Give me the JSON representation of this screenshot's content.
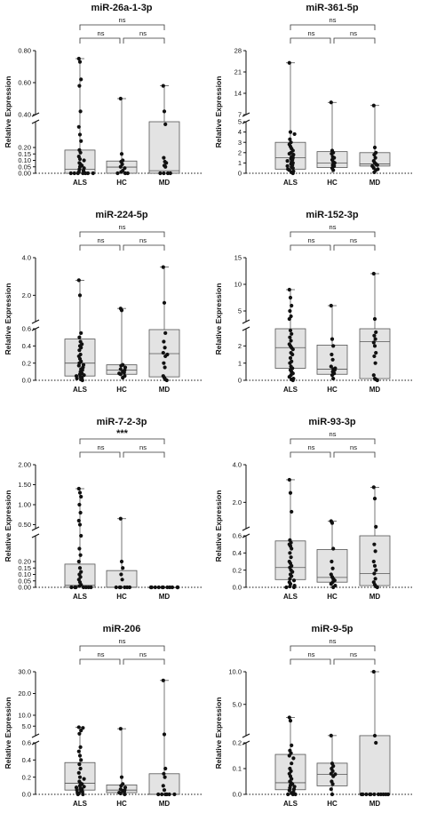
{
  "chart_data": [
    {
      "type": "box",
      "title": "miR-26a-1-3p",
      "ylabel": "Relative Expression",
      "categories": [
        "ALS",
        "HC",
        "MD"
      ],
      "y_break": {
        "lower_range": [
          0,
          0.4
        ],
        "upper_range": [
          0.4,
          0.8
        ]
      },
      "yticks_lower": [
        "0.00",
        "0.05",
        "0.10",
        "0.15",
        "0.20"
      ],
      "yticks_upper": [
        "0.40",
        "0.60",
        "0.80"
      ],
      "boxes": [
        {
          "category": "ALS",
          "min": 0.0,
          "q1": 0.0,
          "median": 0.03,
          "q3": 0.18,
          "max": 0.75
        },
        {
          "category": "HC",
          "min": 0.0,
          "q1": 0.0,
          "median": 0.048,
          "q3": 0.095,
          "max": 0.5
        },
        {
          "category": "MD",
          "min": 0.0,
          "q1": 0.0,
          "median": 0.02,
          "q3": 0.4,
          "max": 0.58
        }
      ],
      "points": {
        "ALS": [
          0.75,
          0.73,
          0.62,
          0.58,
          0.42,
          0.36,
          0.3,
          0.25,
          0.18,
          0.16,
          0.13,
          0.11,
          0.1,
          0.08,
          0.07,
          0.06,
          0.05,
          0.04,
          0.03,
          0.02,
          0.01,
          0.0,
          0.0,
          0.0,
          0.0,
          0.0,
          0.0,
          0.0
        ],
        "HC": [
          0.5,
          0.15,
          0.1,
          0.09,
          0.07,
          0.05,
          0.04,
          0.02,
          0.01,
          0.0,
          0.0,
          0.0
        ],
        "MD": [
          0.58,
          0.42,
          0.38,
          0.12,
          0.09,
          0.08,
          0.06,
          0.05,
          0.0,
          0.0,
          0.0,
          0.0
        ]
      },
      "significance": {
        "top": "ns",
        "left": "ns",
        "right": "ns"
      }
    },
    {
      "type": "box",
      "title": "miR-361-5p",
      "ylabel": "Relative Expression",
      "categories": [
        "ALS",
        "HC",
        "MD"
      ],
      "y_break": {
        "lower_range": [
          0,
          5
        ],
        "upper_range": [
          7,
          28
        ]
      },
      "yticks_lower": [
        "0",
        "1",
        "2",
        "3",
        "4",
        "5"
      ],
      "yticks_upper": [
        "7",
        "14",
        "21",
        "28"
      ],
      "boxes": [
        {
          "category": "ALS",
          "min": 0.0,
          "q1": 0.4,
          "median": 1.5,
          "q3": 3.0,
          "max": 24.0
        },
        {
          "category": "HC",
          "min": 0.0,
          "q1": 0.55,
          "median": 1.0,
          "q3": 2.1,
          "max": 11.0
        },
        {
          "category": "MD",
          "min": 0.0,
          "q1": 0.7,
          "median": 0.9,
          "q3": 2.0,
          "max": 10.0
        }
      ],
      "points": {
        "ALS": [
          24.0,
          4.0,
          3.8,
          3.3,
          3.0,
          2.8,
          2.6,
          2.4,
          2.2,
          2.0,
          1.9,
          1.8,
          1.6,
          1.5,
          1.4,
          1.3,
          1.2,
          1.1,
          1.0,
          0.9,
          0.8,
          0.7,
          0.6,
          0.5,
          0.4,
          0.3,
          0.2,
          0.1,
          0.0
        ],
        "HC": [
          11.0,
          2.2,
          2.0,
          1.9,
          1.6,
          1.5,
          1.3,
          1.1,
          1.0,
          0.8,
          0.7,
          0.5,
          0.3
        ],
        "MD": [
          10.0,
          2.5,
          2.0,
          1.8,
          1.5,
          1.2,
          1.0,
          0.9,
          0.8,
          0.7,
          0.5,
          0.4,
          0.3,
          0.1
        ]
      },
      "significance": {
        "top": "ns",
        "left": "ns",
        "right": "ns"
      }
    },
    {
      "type": "box",
      "title": "miR-224-5p",
      "ylabel": "Relative Expression",
      "categories": [
        "ALS",
        "HC",
        "MD"
      ],
      "y_break": {
        "lower_range": [
          0,
          0.6
        ],
        "upper_range": [
          0.6,
          4.0
        ]
      },
      "yticks_lower": [
        "0.0",
        "0.2",
        "0.4",
        "0.6"
      ],
      "yticks_upper": [
        "2.0",
        "4.0"
      ],
      "boxes": [
        {
          "category": "ALS",
          "min": 0.0,
          "q1": 0.05,
          "median": 0.2,
          "q3": 0.48,
          "max": 2.8
        },
        {
          "category": "HC",
          "min": 0.03,
          "q1": 0.07,
          "median": 0.12,
          "q3": 0.18,
          "max": 1.3
        },
        {
          "category": "MD",
          "min": 0.0,
          "q1": 0.04,
          "median": 0.31,
          "q3": 0.59,
          "max": 3.5
        }
      ],
      "points": {
        "ALS": [
          2.8,
          2.0,
          0.55,
          0.5,
          0.45,
          0.42,
          0.4,
          0.38,
          0.35,
          0.3,
          0.28,
          0.25,
          0.22,
          0.2,
          0.18,
          0.17,
          0.15,
          0.13,
          0.12,
          0.1,
          0.08,
          0.07,
          0.06,
          0.05,
          0.04,
          0.03,
          0.02,
          0.01,
          0.0
        ],
        "HC": [
          1.3,
          1.2,
          0.18,
          0.17,
          0.15,
          0.13,
          0.12,
          0.1,
          0.09,
          0.08,
          0.07,
          0.05,
          0.03
        ],
        "MD": [
          3.5,
          1.6,
          0.55,
          0.45,
          0.38,
          0.32,
          0.3,
          0.28,
          0.2,
          0.15,
          0.05,
          0.03,
          0.01,
          0.0
        ]
      },
      "significance": {
        "top": "ns",
        "left": "ns",
        "right": "ns"
      }
    },
    {
      "type": "box",
      "title": "miR-152-3p",
      "ylabel": "Relative Expression",
      "categories": [
        "ALS",
        "HC",
        "MD"
      ],
      "y_break": {
        "lower_range": [
          0,
          3
        ],
        "upper_range": [
          3,
          15
        ]
      },
      "yticks_lower": [
        "0",
        "1",
        "2"
      ],
      "yticks_upper": [
        "5",
        "10",
        "15"
      ],
      "boxes": [
        {
          "category": "ALS",
          "min": 0.0,
          "q1": 0.7,
          "median": 1.9,
          "q3": 3.0,
          "max": 9.0
        },
        {
          "category": "HC",
          "min": 0.0,
          "q1": 0.35,
          "median": 0.65,
          "q3": 2.05,
          "max": 6.0
        },
        {
          "category": "MD",
          "min": 0.0,
          "q1": 0.1,
          "median": 2.25,
          "q3": 3.0,
          "max": 12.0
        }
      ],
      "points": {
        "ALS": [
          9.0,
          7.5,
          6.0,
          5.0,
          4.0,
          3.5,
          2.9,
          2.7,
          2.5,
          2.3,
          2.1,
          2.0,
          1.9,
          1.8,
          1.6,
          1.5,
          1.3,
          1.1,
          1.0,
          0.8,
          0.7,
          0.6,
          0.5,
          0.4,
          0.3,
          0.2,
          0.1,
          0.05,
          0.0
        ],
        "HC": [
          6.0,
          2.4,
          2.0,
          1.5,
          1.2,
          0.8,
          0.7,
          0.65,
          0.6,
          0.5,
          0.4,
          0.3,
          0.1
        ],
        "MD": [
          12.0,
          3.5,
          2.8,
          2.6,
          2.4,
          2.2,
          2.0,
          1.6,
          1.4,
          1.0,
          0.3,
          0.1,
          0.05,
          0.0
        ]
      },
      "significance": {
        "top": "ns",
        "left": "ns",
        "right": "ns"
      }
    },
    {
      "type": "box",
      "title": "miR-7-2-3p",
      "ylabel": "Relative Expression",
      "categories": [
        "ALS",
        "HC",
        "MD"
      ],
      "y_break": {
        "lower_range": [
          0,
          0.4
        ],
        "upper_range": [
          0.4,
          2.0
        ]
      },
      "yticks_lower": [
        "0.00",
        "0.05",
        "0.10",
        "0.15",
        "0.20"
      ],
      "yticks_upper": [
        "0.50",
        "1.00",
        "1.50",
        "2.00"
      ],
      "boxes": [
        {
          "category": "ALS",
          "min": 0.0,
          "q1": 0.0,
          "median": 0.015,
          "q3": 0.18,
          "max": 1.4
        },
        {
          "category": "HC",
          "min": 0.0,
          "q1": 0.0,
          "median": 0.0,
          "q3": 0.13,
          "max": 0.65
        },
        {
          "category": "MD",
          "min": 0.0,
          "q1": 0.0,
          "median": 0.0,
          "q3": 0.0,
          "max": 0.0
        }
      ],
      "points": {
        "ALS": [
          1.4,
          1.3,
          1.2,
          1.0,
          0.8,
          0.6,
          0.5,
          0.4,
          0.3,
          0.25,
          0.2,
          0.15,
          0.12,
          0.1,
          0.08,
          0.06,
          0.04,
          0.02,
          0.01,
          0.0,
          0.0,
          0.0,
          0.0,
          0.0,
          0.0,
          0.0
        ],
        "HC": [
          0.65,
          0.2,
          0.15,
          0.1,
          0.06,
          0.0,
          0.0,
          0.0,
          0.0,
          0.0,
          0.0
        ],
        "MD": [
          0.0,
          0.0,
          0.0,
          0.0,
          0.0,
          0.0,
          0.0,
          0.0,
          0.0,
          0.0,
          0.0,
          0.0,
          0.0,
          0.0
        ]
      },
      "significance": {
        "top": "***",
        "left": "ns",
        "right": "ns"
      }
    },
    {
      "type": "box",
      "title": "miR-93-3p",
      "ylabel": "Relative Expression",
      "categories": [
        "ALS",
        "HC",
        "MD"
      ],
      "y_break": {
        "lower_range": [
          0,
          0.6
        ],
        "upper_range": [
          0.6,
          4.0
        ]
      },
      "yticks_lower": [
        "0.0",
        "0.2",
        "0.4",
        "0.6"
      ],
      "yticks_upper": [
        "2.0",
        "4.0"
      ],
      "boxes": [
        {
          "category": "ALS",
          "min": 0.0,
          "q1": 0.09,
          "median": 0.23,
          "q3": 0.54,
          "max": 3.2
        },
        {
          "category": "HC",
          "min": 0.0,
          "q1": 0.06,
          "median": 0.115,
          "q3": 0.44,
          "max": 1.0
        },
        {
          "category": "MD",
          "min": 0.0,
          "q1": 0.02,
          "median": 0.16,
          "q3": 0.6,
          "max": 2.8
        }
      ],
      "points": {
        "ALS": [
          3.2,
          2.5,
          1.5,
          0.55,
          0.52,
          0.5,
          0.48,
          0.45,
          0.4,
          0.35,
          0.3,
          0.28,
          0.25,
          0.23,
          0.2,
          0.18,
          0.15,
          0.13,
          0.1,
          0.08,
          0.06,
          0.04,
          0.02,
          0.01,
          0.0,
          0.0
        ],
        "HC": [
          1.0,
          0.9,
          0.45,
          0.3,
          0.22,
          0.15,
          0.12,
          0.1,
          0.08,
          0.06,
          0.04,
          0.02,
          0.0
        ],
        "MD": [
          2.8,
          2.2,
          0.7,
          0.5,
          0.42,
          0.3,
          0.25,
          0.2,
          0.16,
          0.1,
          0.06,
          0.03,
          0.01,
          0.0
        ]
      },
      "significance": {
        "top": "ns",
        "left": "ns",
        "right": "ns"
      }
    },
    {
      "type": "box",
      "title": "miR-206",
      "ylabel": "Relative Expression",
      "categories": [
        "ALS",
        "HC",
        "MD"
      ],
      "y_break": {
        "lower_range": [
          0,
          0.6
        ],
        "upper_range": [
          0.6,
          30.0
        ]
      },
      "yticks_lower": [
        "0.0",
        "0.2",
        "0.4",
        "0.6"
      ],
      "yticks_upper": [
        "5.0",
        "10.0",
        "20.0",
        "30.0"
      ],
      "boxes": [
        {
          "category": "ALS",
          "min": 0.0,
          "q1": 0.05,
          "median": 0.13,
          "q3": 0.37,
          "max": 4.5
        },
        {
          "category": "HC",
          "min": 0.0,
          "q1": 0.02,
          "median": 0.05,
          "q3": 0.11,
          "max": 3.8
        },
        {
          "category": "MD",
          "min": 0.0,
          "q1": 0.0,
          "median": 0.0,
          "q3": 0.24,
          "max": 26.0
        }
      ],
      "points": {
        "ALS": [
          4.5,
          4.2,
          3.0,
          1.5,
          0.55,
          0.5,
          0.45,
          0.4,
          0.35,
          0.3,
          0.25,
          0.2,
          0.18,
          0.15,
          0.13,
          0.12,
          0.1,
          0.09,
          0.08,
          0.07,
          0.06,
          0.05,
          0.04,
          0.03,
          0.02,
          0.01,
          0.0,
          0.0
        ],
        "HC": [
          3.8,
          0.2,
          0.12,
          0.1,
          0.08,
          0.06,
          0.05,
          0.04,
          0.03,
          0.02,
          0.01,
          0.0
        ],
        "MD": [
          26.0,
          1.2,
          0.3,
          0.24,
          0.2,
          0.1,
          0.05,
          0.0,
          0.0,
          0.0,
          0.0,
          0.0,
          0.0
        ]
      },
      "significance": {
        "top": "ns",
        "left": "ns",
        "right": "ns"
      }
    },
    {
      "type": "box",
      "title": "miR-9-5p",
      "ylabel": "Relative Expression",
      "categories": [
        "ALS",
        "HC",
        "MD"
      ],
      "y_break": {
        "lower_range": [
          0,
          0.2
        ],
        "upper_range": [
          0.2,
          10.0
        ]
      },
      "yticks_lower": [
        "0.0",
        "0.1",
        "0.2"
      ],
      "yticks_upper": [
        "5.0",
        "10.0"
      ],
      "boxes": [
        {
          "category": "ALS",
          "min": 0.0,
          "q1": 0.018,
          "median": 0.045,
          "q3": 0.155,
          "max": 3.0
        },
        {
          "category": "HC",
          "min": 0.0,
          "q1": 0.033,
          "median": 0.078,
          "q3": 0.121,
          "max": 0.22
        },
        {
          "category": "MD",
          "min": 0.0,
          "q1": 0.0,
          "median": 0.0,
          "q3": 0.21,
          "max": 10.0
        }
      ],
      "points": {
        "ALS": [
          3.0,
          2.5,
          0.19,
          0.17,
          0.16,
          0.15,
          0.14,
          0.12,
          0.1,
          0.09,
          0.08,
          0.07,
          0.06,
          0.05,
          0.045,
          0.04,
          0.035,
          0.03,
          0.025,
          0.02,
          0.015,
          0.01,
          0.005,
          0.0,
          0.0,
          0.0
        ],
        "HC": [
          0.22,
          0.12,
          0.11,
          0.1,
          0.09,
          0.08,
          0.078,
          0.07,
          0.05,
          0.04,
          0.02,
          0.0
        ],
        "MD": [
          10.0,
          0.21,
          0.2,
          0.0,
          0.0,
          0.0,
          0.0,
          0.0,
          0.0,
          0.0,
          0.0,
          0.0,
          0.0,
          0.0
        ]
      },
      "significance": {
        "top": "ns",
        "left": "ns",
        "right": "ns"
      }
    }
  ]
}
